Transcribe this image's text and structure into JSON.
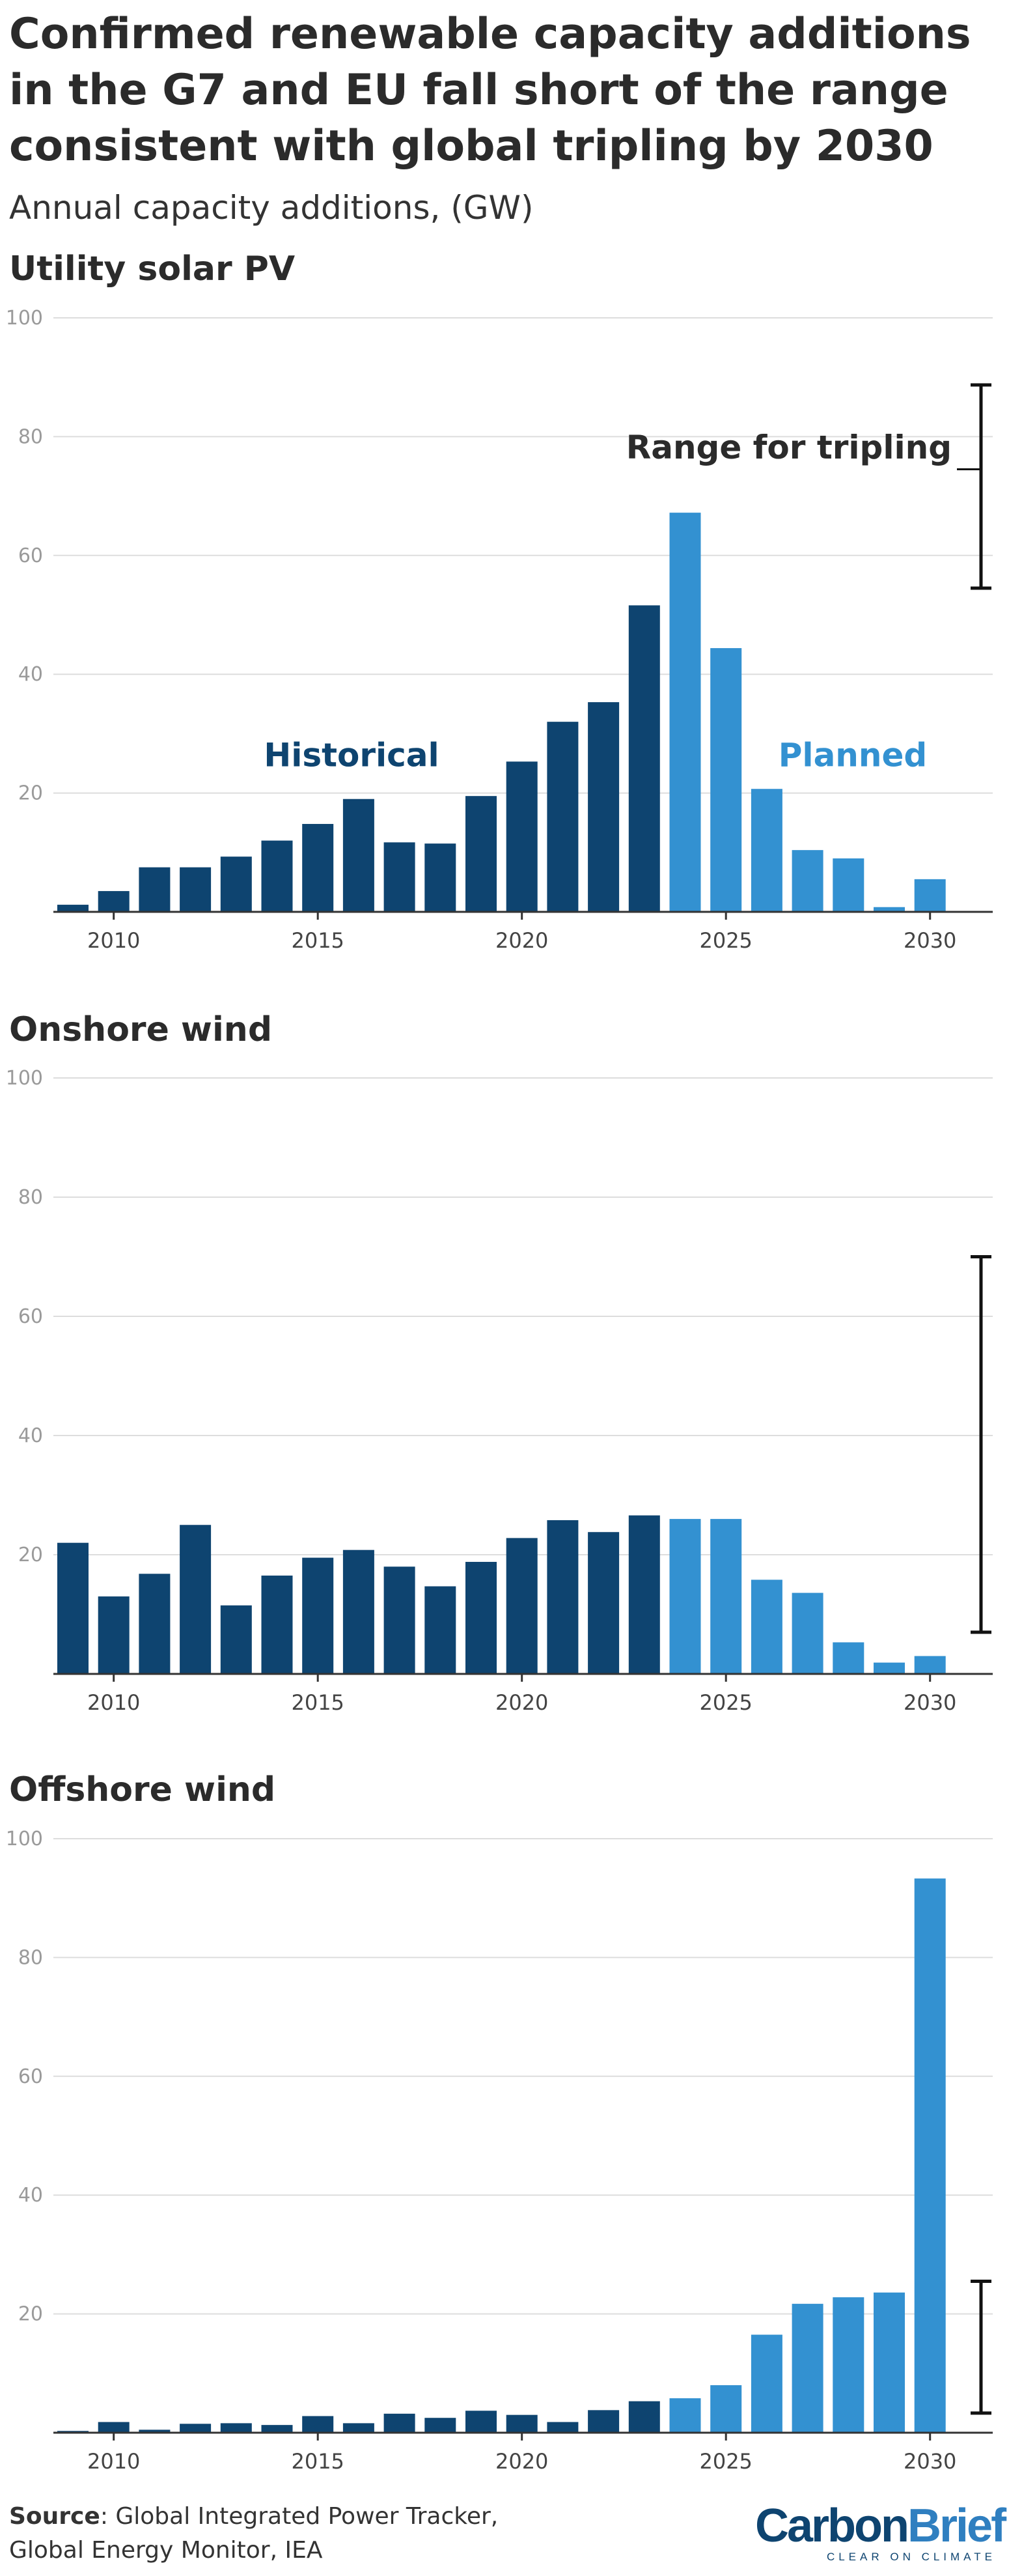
{
  "title": "Confirmed renewable capacity additions in the G7 and EU fall short of the range consistent with global tripling by 2030",
  "subtitle": "Annual capacity additions, (GW)",
  "colors": {
    "historical": "#0e4470",
    "planned": "#3391d1",
    "grid": "#dddddd",
    "range": "#111111"
  },
  "annotations": {
    "historical": "Historical",
    "planned": "Planned",
    "range": "Range for tripling"
  },
  "chart_data": [
    {
      "type": "bar",
      "title": "Utility solar PV",
      "x": [
        2009,
        2010,
        2011,
        2012,
        2013,
        2014,
        2015,
        2016,
        2017,
        2018,
        2019,
        2020,
        2021,
        2022,
        2023,
        2024,
        2025,
        2026,
        2027,
        2028,
        2029,
        2030
      ],
      "series": [
        {
          "name": "Historical",
          "x": [
            2009,
            2010,
            2011,
            2012,
            2013,
            2014,
            2015,
            2016,
            2017,
            2018,
            2019,
            2020,
            2021,
            2022,
            2023
          ],
          "values": [
            1.2,
            3.5,
            7.5,
            7.5,
            9.3,
            12,
            14.8,
            19,
            11.7,
            11.5,
            19.5,
            25.3,
            32,
            35.3,
            51.6
          ]
        },
        {
          "name": "Planned",
          "x": [
            2024,
            2025,
            2026,
            2027,
            2028,
            2029,
            2030
          ],
          "values": [
            67.2,
            44.4,
            20.7,
            10.4,
            9,
            0.8,
            5.5
          ]
        }
      ],
      "tripling_range": [
        54.5,
        88.7
      ],
      "ylim": [
        0,
        100
      ],
      "yticks": [
        20,
        40,
        60,
        80,
        100
      ],
      "xticks": [
        2010,
        2015,
        2020,
        2025,
        2030
      ],
      "grid": true
    },
    {
      "type": "bar",
      "title": "Onshore wind",
      "x": [
        2009,
        2010,
        2011,
        2012,
        2013,
        2014,
        2015,
        2016,
        2017,
        2018,
        2019,
        2020,
        2021,
        2022,
        2023,
        2024,
        2025,
        2026,
        2027,
        2028,
        2029,
        2030
      ],
      "series": [
        {
          "name": "Historical",
          "x": [
            2009,
            2010,
            2011,
            2012,
            2013,
            2014,
            2015,
            2016,
            2017,
            2018,
            2019,
            2020,
            2021,
            2022,
            2023
          ],
          "values": [
            22,
            13,
            16.8,
            25,
            11.5,
            16.5,
            19.5,
            20.8,
            18,
            14.7,
            18.8,
            22.8,
            25.8,
            23.8,
            26.6
          ]
        },
        {
          "name": "Planned",
          "x": [
            2024,
            2025,
            2026,
            2027,
            2028,
            2029,
            2030
          ],
          "values": [
            26,
            26,
            15.8,
            13.6,
            5.3,
            1.9,
            3
          ]
        }
      ],
      "tripling_range": [
        7,
        70
      ],
      "ylim": [
        0,
        100
      ],
      "yticks": [
        20,
        40,
        60,
        80,
        100
      ],
      "xticks": [
        2010,
        2015,
        2020,
        2025,
        2030
      ],
      "grid": true
    },
    {
      "type": "bar",
      "title": "Offshore wind",
      "x": [
        2009,
        2010,
        2011,
        2012,
        2013,
        2014,
        2015,
        2016,
        2017,
        2018,
        2019,
        2020,
        2021,
        2022,
        2023,
        2024,
        2025,
        2026,
        2027,
        2028,
        2029,
        2030
      ],
      "series": [
        {
          "name": "Historical",
          "x": [
            2009,
            2010,
            2011,
            2012,
            2013,
            2014,
            2015,
            2016,
            2017,
            2018,
            2019,
            2020,
            2021,
            2022,
            2023
          ],
          "values": [
            0.3,
            1.8,
            0.5,
            1.5,
            1.6,
            1.3,
            2.8,
            1.6,
            3.2,
            2.5,
            3.7,
            3,
            1.8,
            3.8,
            5.3
          ]
        },
        {
          "name": "Planned",
          "x": [
            2024,
            2025,
            2026,
            2027,
            2028,
            2029,
            2030
          ],
          "values": [
            5.8,
            8,
            16.5,
            21.7,
            22.8,
            23.6,
            93.3
          ]
        }
      ],
      "tripling_range": [
        3.3,
        25.5
      ],
      "ylim": [
        0,
        100
      ],
      "yticks": [
        20,
        40,
        60,
        80,
        100
      ],
      "xticks": [
        2010,
        2015,
        2020,
        2025,
        2030
      ],
      "grid": true
    }
  ],
  "footer": {
    "source_label": "Source",
    "source_text": ": Global Integrated Power Tracker, Global Energy Monitor, IEA"
  },
  "logo": {
    "part1": "Carbon",
    "part2": "Brief",
    "tagline": "CLEAR ON CLIMATE"
  }
}
